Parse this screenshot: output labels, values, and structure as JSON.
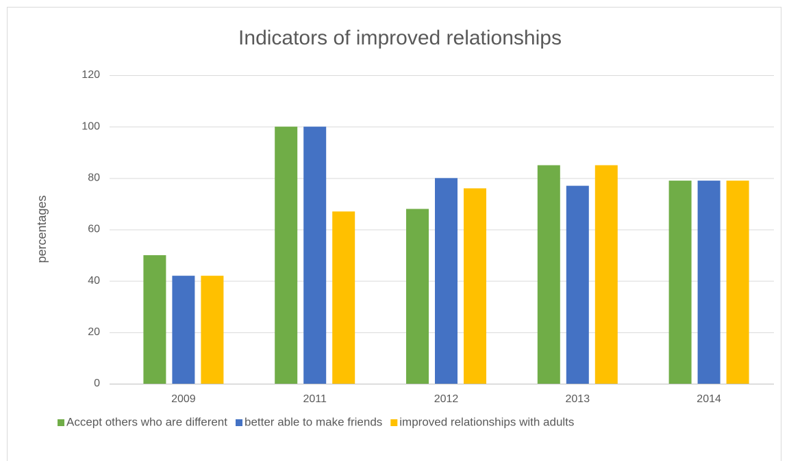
{
  "chart_data": {
    "type": "bar",
    "title": "Indicators of improved relationships",
    "y_label": "percentages",
    "categories": [
      "2009",
      "2011",
      "2012",
      "2013",
      "2014"
    ],
    "series": [
      {
        "name": "Accept others who are different",
        "color": "#70ad47",
        "values": [
          50,
          100,
          68,
          85,
          79
        ]
      },
      {
        "name": "better able to make friends",
        "color": "#4472c4",
        "values": [
          42,
          100,
          80,
          77,
          79
        ]
      },
      {
        "name": "improved relationships with adults",
        "color": "#ffc000",
        "values": [
          42,
          67,
          76,
          85,
          79
        ]
      }
    ],
    "ylim": [
      0,
      120
    ],
    "yticks": [
      0,
      20,
      40,
      60,
      80,
      100,
      120
    ],
    "grid": true,
    "legend": "bottom"
  }
}
